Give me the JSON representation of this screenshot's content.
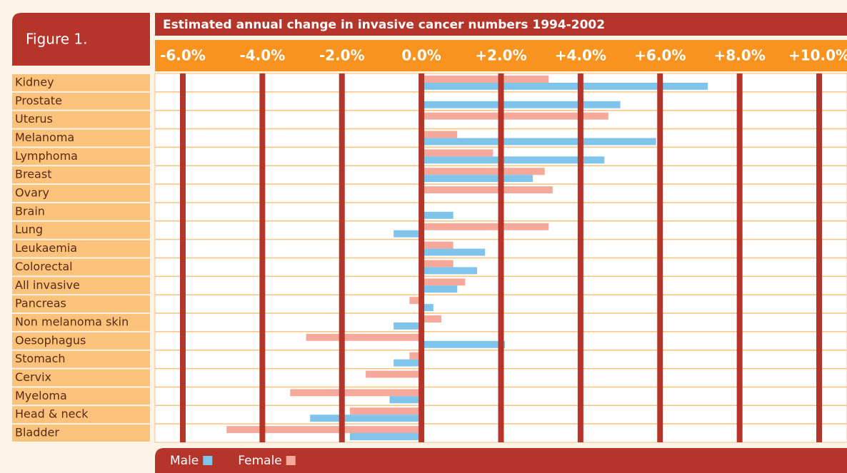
{
  "chart_data": {
    "type": "hbar",
    "figure_label": "Figure 1.",
    "title": "Estimated annual change in invasive cancer numbers 1994-2002",
    "categories": [
      "Kidney",
      "Prostate",
      "Uterus",
      "Melanoma",
      "Lymphoma",
      "Breast",
      "Ovary",
      "Brain",
      "Lung",
      "Leukaemia",
      "Colorectal",
      "All invasive",
      "Pancreas",
      "Non melanoma skin",
      "Oesophagus",
      "Stomach",
      "Cervix",
      "Myeloma",
      "Head & neck",
      "Bladder"
    ],
    "series": [
      {
        "name": "Male",
        "color": "#7fc4ea",
        "values": [
          7.2,
          5.0,
          null,
          5.9,
          4.6,
          2.8,
          null,
          0.8,
          -0.7,
          1.6,
          1.4,
          0.9,
          0.3,
          -0.7,
          2.1,
          -0.7,
          null,
          -0.8,
          -2.8,
          -1.8
        ]
      },
      {
        "name": "Female",
        "color": "#f6a99a",
        "values": [
          3.2,
          null,
          4.7,
          0.9,
          1.8,
          3.1,
          3.3,
          null,
          3.2,
          0.8,
          0.8,
          1.1,
          -0.3,
          0.5,
          -2.9,
          -0.3,
          -1.4,
          -3.3,
          -1.8,
          -4.9
        ]
      }
    ],
    "xlim": [
      -6.7,
      10.7
    ],
    "xticks": [
      {
        "value": -6,
        "label": "-6.0%"
      },
      {
        "value": -4,
        "label": "-4.0%"
      },
      {
        "value": -2,
        "label": "-2.0%"
      },
      {
        "value": 0,
        "label": "0.0%"
      },
      {
        "value": 2,
        "label": "+2.0%"
      },
      {
        "value": 4,
        "label": "+4.0%"
      },
      {
        "value": 6,
        "label": "+6.0%"
      },
      {
        "value": 8,
        "label": "+8.0%"
      },
      {
        "value": 10,
        "label": "+10.0%"
      }
    ],
    "grid": true
  }
}
